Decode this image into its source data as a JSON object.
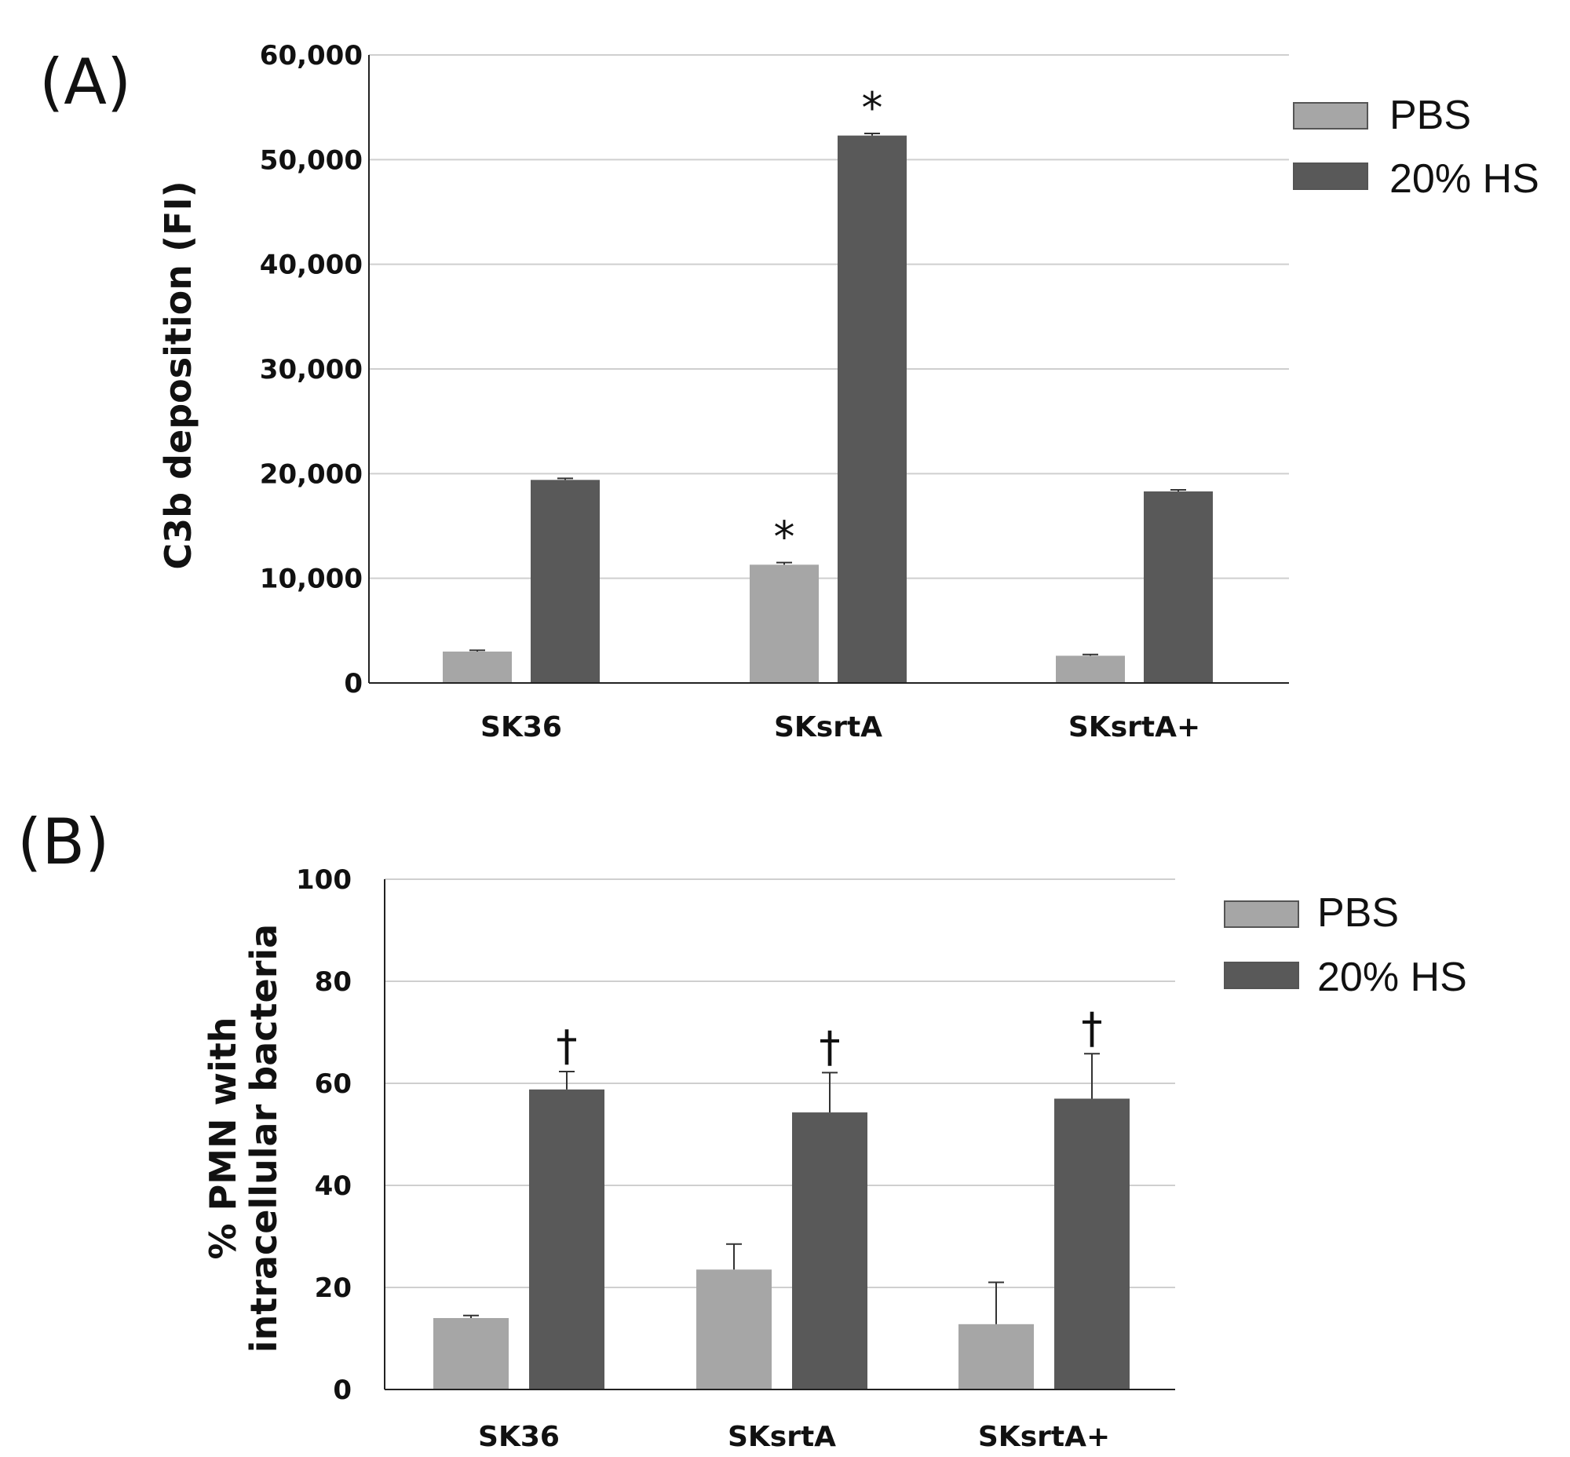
{
  "figure": {
    "panels": [
      {
        "letter": "(A)",
        "ylabel_lines": [
          "C3b deposition (FI)"
        ],
        "ytick_labels": [
          "0",
          "10,000",
          "20,000",
          "30,000",
          "40,000",
          "50,000",
          "60,000"
        ],
        "legend": [
          {
            "label": "PBS"
          },
          {
            "label": "20% HS"
          }
        ]
      },
      {
        "letter": "(B)",
        "ylabel_lines": [
          "% PMN with",
          "intracellular bacteria"
        ],
        "ytick_labels": [
          "0",
          "20",
          "40",
          "60",
          "80",
          "100"
        ],
        "legend": [
          {
            "label": "PBS"
          },
          {
            "label": "20% HS"
          }
        ]
      }
    ]
  },
  "chart_data": [
    {
      "type": "bar",
      "ylabel": "C3b deposition (FI)",
      "categories": [
        "SK36",
        "SKsrtA",
        "SKsrtA+"
      ],
      "ylim": [
        0,
        60000
      ],
      "yticks": [
        0,
        10000,
        20000,
        30000,
        40000,
        50000,
        60000
      ],
      "grid": true,
      "legend_position": "top-right",
      "series": [
        {
          "name": "PBS",
          "color": "#a6a6a6",
          "values": [
            3000,
            11300,
            2600
          ],
          "errors": [
            120,
            200,
            120
          ],
          "annotations": [
            "",
            "*",
            ""
          ]
        },
        {
          "name": "20% HS",
          "color": "#595959",
          "values": [
            19400,
            52300,
            18300
          ],
          "errors": [
            150,
            200,
            150
          ],
          "annotations": [
            "",
            "*",
            ""
          ]
        }
      ]
    },
    {
      "type": "bar",
      "ylabel": "% PMN with intracellular bacteria",
      "categories": [
        "SK36",
        "SKsrtA",
        "SKsrtA+"
      ],
      "ylim": [
        0,
        100
      ],
      "yticks": [
        0,
        20,
        40,
        60,
        80,
        100
      ],
      "grid": true,
      "legend_position": "top-right",
      "series": [
        {
          "name": "PBS",
          "color": "#a6a6a6",
          "values": [
            14,
            23.5,
            12.8
          ],
          "errors": [
            0.5,
            5,
            8.2
          ],
          "annotations": [
            "",
            "",
            ""
          ]
        },
        {
          "name": "20% HS",
          "color": "#595959",
          "values": [
            58.8,
            54.3,
            57
          ],
          "errors": [
            3.5,
            7.8,
            8.8
          ],
          "annotations": [
            "†",
            "†",
            "†"
          ]
        }
      ]
    }
  ]
}
